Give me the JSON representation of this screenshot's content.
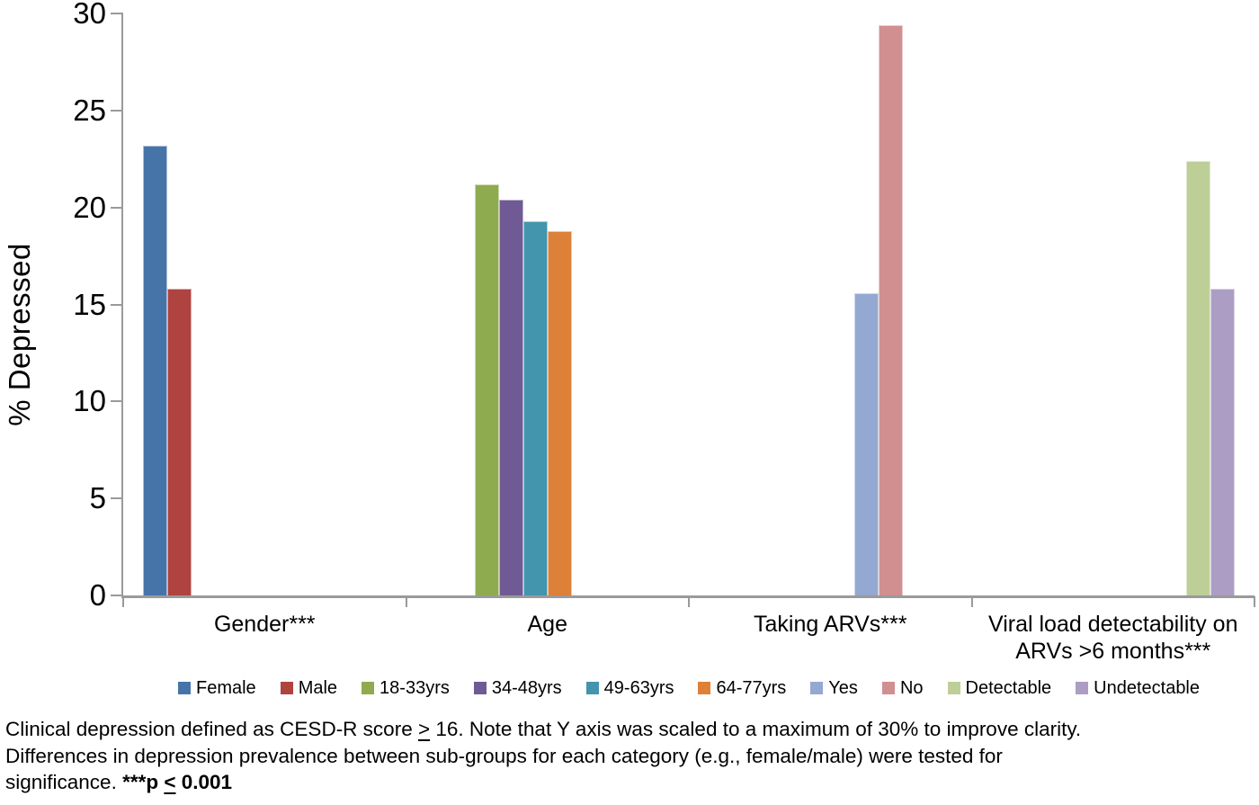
{
  "chart_data": {
    "type": "bar",
    "title": "",
    "ylabel": "% Depressed",
    "ylim": [
      0,
      30
    ],
    "yticks": [
      0,
      5,
      10,
      15,
      20,
      25,
      30
    ],
    "grid": false,
    "legend_position": "bottom",
    "slots_per_category": 10,
    "axis_color": "#9a9a9a",
    "categories": [
      {
        "label": "Gender***",
        "bars": [
          {
            "series": "Female",
            "value": 23.2,
            "slot": 0
          },
          {
            "series": "Male",
            "value": 15.8,
            "slot": 1
          }
        ]
      },
      {
        "label": "Age",
        "bars": [
          {
            "series": "18-33yrs",
            "value": 21.2,
            "slot": 2
          },
          {
            "series": "34-48yrs",
            "value": 20.4,
            "slot": 3
          },
          {
            "series": "49-63yrs",
            "value": 19.3,
            "slot": 4
          },
          {
            "series": "64-77yrs",
            "value": 18.8,
            "slot": 5
          }
        ]
      },
      {
        "label": "Taking ARVs***",
        "bars": [
          {
            "series": "Yes",
            "value": 15.6,
            "slot": 6
          },
          {
            "series": "No",
            "value": 29.4,
            "slot": 7
          }
        ]
      },
      {
        "label": "Viral load detectability on ARVs >6 months***",
        "bars": [
          {
            "series": "Detectable",
            "value": 22.4,
            "slot": 8
          },
          {
            "series": "Undetectable",
            "value": 15.8,
            "slot": 9
          }
        ]
      }
    ],
    "series": [
      {
        "name": "Female",
        "color": "#4674A8"
      },
      {
        "name": "Male",
        "color": "#AF4340"
      },
      {
        "name": "18-33yrs",
        "color": "#8EAB4F"
      },
      {
        "name": "34-48yrs",
        "color": "#6F5A96"
      },
      {
        "name": "49-63yrs",
        "color": "#4295AC"
      },
      {
        "name": "64-77yrs",
        "color": "#DD8038"
      },
      {
        "name": "Yes",
        "color": "#93A9D1"
      },
      {
        "name": "No",
        "color": "#D18F90"
      },
      {
        "name": "Detectable",
        "color": "#BDCF97"
      },
      {
        "name": "Undetectable",
        "color": "#AC9DC5"
      }
    ]
  },
  "caption": {
    "lines": [
      [
        {
          "t": "Clinical depression defined as CESD-R score "
        },
        {
          "t": ">",
          "u": true
        },
        {
          "t": " 16. Note that Y axis was scaled to a maximum of 30% to improve clarity."
        }
      ],
      [
        {
          "t": "Differences in depression prevalence between sub-groups for each category (e.g., female/male) were tested for"
        }
      ],
      [
        {
          "t": "significance. "
        },
        {
          "t": "***p ",
          "b": true
        },
        {
          "t": "<",
          "b": true,
          "u": true
        },
        {
          "t": " 0.001",
          "b": true
        }
      ]
    ]
  }
}
